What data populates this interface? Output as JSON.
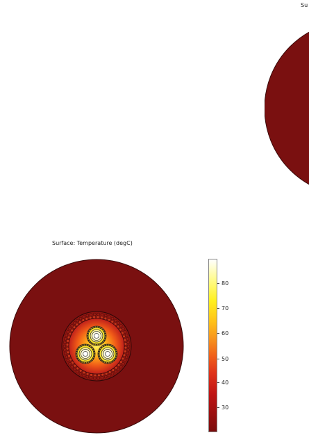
{
  "top_plot": {
    "title": "Su"
  },
  "bottom_plot": {
    "title": "Surface: Temperature (degC)"
  },
  "colorbar": {
    "ticks": [
      "80",
      "70",
      "60",
      "50",
      "40",
      "30"
    ],
    "colors": [
      "#7a0c0c",
      "#c01515",
      "#f0601a",
      "#ffc21a",
      "#fff020",
      "#ffffff"
    ]
  }
}
